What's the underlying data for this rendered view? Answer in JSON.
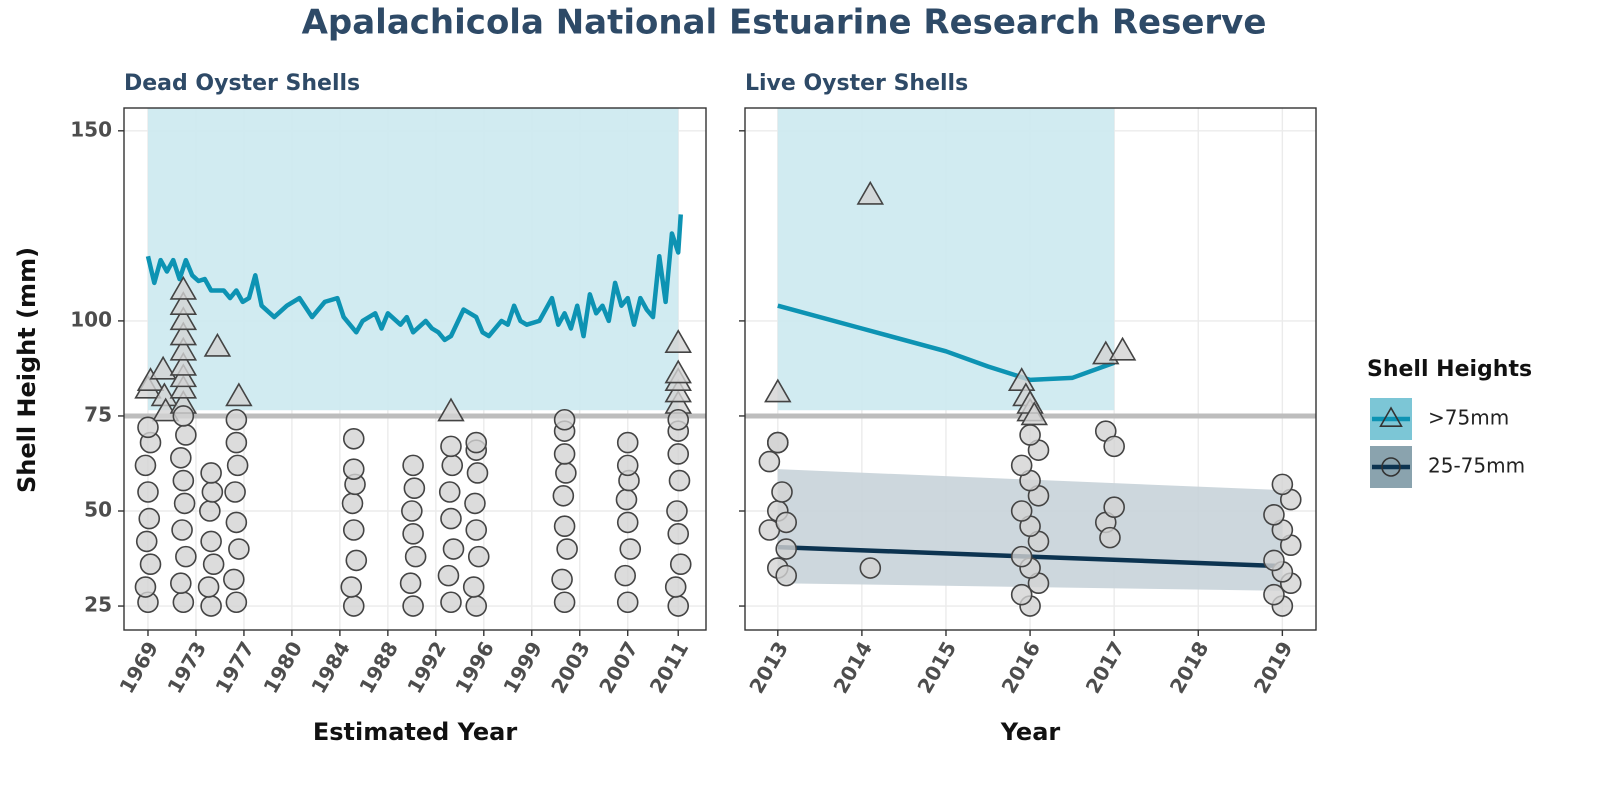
{
  "title": "Apalachicola National Estuarine Research Reserve",
  "ylabel": "Shell Height (mm)",
  "legend": {
    "title": "Shell Heights",
    "items": [
      {
        "label": ">75mm",
        "color": "#0d93b3",
        "fill": "#7cc6d6"
      },
      {
        "label": "25-75mm",
        "color": "#0c3350",
        "fill": "#8aa3ae"
      }
    ]
  },
  "chart_data": [
    {
      "type": "scatter",
      "title": "Dead Oyster Shells",
      "xlabel": "Estimated Year",
      "xlim": [
        1967.1,
        2013.2
      ],
      "ylim": [
        18.7,
        156
      ],
      "xticks": [
        1969,
        {
          "value": 1972.8,
          "label": "1973"
        },
        {
          "value": 1976.6,
          "label": "1977"
        },
        {
          "value": 1980.4,
          "label": "1980"
        },
        {
          "value": 1984.2,
          "label": "1984"
        },
        1988,
        {
          "value": 1991.8,
          "label": "1992"
        },
        {
          "value": 1995.6,
          "label": "1996"
        },
        {
          "value": 1999.4,
          "label": "1999"
        },
        {
          "value": 2003.2,
          "label": "2003"
        },
        2007,
        2011
      ],
      "yticks": [
        25,
        50,
        75,
        100,
        150
      ],
      "ytick_labels": true,
      "grid": true,
      "threshold": 75,
      "highlight": {
        "xrange": [
          1969,
          2011
        ],
        "ymin": 76.5,
        "color": "#cfeaf0"
      },
      "series": [
        {
          "marker": "triangle",
          "color": "#444444",
          "x": [
            1969,
            1969.2,
            1970.2,
            1970.3,
            1970.4,
            1971.8,
            1971.8,
            1971.8,
            1971.8,
            1971.8,
            1971.8,
            1971.8,
            1971.8,
            1971.8,
            1974.5,
            1976.2,
            1993,
            2011,
            2011,
            2011,
            2011,
            2011
          ],
          "values": [
            82,
            84,
            87,
            80,
            76,
            78,
            82,
            85,
            88,
            92,
            96,
            100,
            104,
            108,
            93,
            80,
            76,
            78,
            81,
            84,
            86,
            94
          ]
        },
        {
          "marker": "circle",
          "color": "#444444",
          "x": [
            1969,
            1968.8,
            1969.2,
            1968.9,
            1969.1,
            1969,
            1968.8,
            1969.2,
            1969,
            1971.8,
            1971.6,
            1972,
            1971.7,
            1971.9,
            1971.8,
            1971.6,
            1972,
            1971.8,
            1974,
            1973.8,
            1974.2,
            1974,
            1973.9,
            1974.1,
            1974,
            1976,
            1975.8,
            1976.2,
            1976,
            1975.9,
            1976.1,
            1976,
            1976,
            1985.3,
            1985.1,
            1985.5,
            1985.3,
            1985.2,
            1985.4,
            1985.3,
            1985.3,
            1990,
            1989.8,
            1990.2,
            1990,
            1989.9,
            1990.1,
            1990,
            1993,
            1992.8,
            1993.2,
            1993,
            1992.9,
            1993.1,
            1993,
            1995,
            1994.8,
            1995.2,
            1995,
            1994.9,
            1995.1,
            1995,
            1995,
            2002,
            2001.8,
            2002.2,
            2002,
            2001.9,
            2002.1,
            2002,
            2002,
            2002,
            2007,
            2006.8,
            2007.2,
            2007,
            2006.9,
            2007.1,
            2007,
            2007,
            2011,
            2010.8,
            2011.2,
            2011,
            2010.9,
            2011.1,
            2011,
            2011,
            2011
          ],
          "values": [
            26,
            30,
            36,
            42,
            48,
            55,
            62,
            68,
            72,
            26,
            31,
            38,
            45,
            52,
            58,
            64,
            70,
            75,
            25,
            30,
            36,
            42,
            50,
            55,
            60,
            26,
            32,
            40,
            47,
            55,
            62,
            68,
            74,
            25,
            30,
            37,
            45,
            52,
            57,
            61,
            69,
            25,
            31,
            38,
            44,
            50,
            56,
            62,
            26,
            33,
            40,
            48,
            55,
            62,
            67,
            25,
            30,
            38,
            45,
            52,
            60,
            66,
            68,
            26,
            32,
            40,
            46,
            54,
            60,
            65,
            71,
            74,
            26,
            33,
            40,
            47,
            53,
            58,
            62,
            68,
            25,
            30,
            36,
            44,
            50,
            58,
            65,
            71,
            74
          ]
        }
      ],
      "trend": {
        "color": "#0d93b3",
        "x": [
          1969,
          1969.5,
          1970,
          1970.5,
          1971,
          1971.5,
          1972,
          1972.5,
          1973,
          1973.5,
          1974,
          1975,
          1975.5,
          1976,
          1976.5,
          1977,
          1977.5,
          1978,
          1979,
          1980,
          1981,
          1982,
          1983,
          1984,
          1984.5,
          1985,
          1985.5,
          1986,
          1987,
          1987.5,
          1988,
          1989,
          1989.5,
          1990,
          1991,
          1991.5,
          1992,
          1992.5,
          1993,
          1994,
          1995,
          1995.5,
          1996,
          1997,
          1997.5,
          1998,
          1998.5,
          1999,
          2000,
          2001,
          2001.5,
          2002,
          2002.5,
          2003,
          2003.5,
          2004,
          2004.5,
          2005,
          2005.5,
          2006,
          2006.5,
          2007,
          2007.5,
          2008,
          2008.5,
          2009,
          2009.5,
          2010,
          2010.5,
          2011,
          2011.2
        ],
        "values": [
          117,
          110,
          116,
          113,
          116,
          111,
          116,
          112,
          110.5,
          111,
          108,
          108,
          106,
          108,
          105,
          106,
          112,
          104,
          101,
          104,
          106,
          101,
          105,
          106,
          101,
          99,
          97,
          100,
          102,
          98,
          102,
          99,
          101,
          97,
          100,
          98,
          97,
          95,
          96,
          103,
          101,
          97,
          96,
          100,
          99,
          104,
          100,
          99,
          100,
          106,
          99,
          102,
          98,
          104,
          96,
          107,
          102,
          104,
          100,
          110,
          104,
          106,
          99,
          106,
          103,
          101,
          117,
          105,
          123,
          118,
          128
        ]
      }
    },
    {
      "type": "scatter",
      "title": "Live Oyster Shells",
      "xlabel": "Year",
      "xlim": [
        2012.61,
        2019.4
      ],
      "ylim": [
        18.7,
        156
      ],
      "xticks": [
        2013,
        2014,
        2015,
        2016,
        2017,
        2018,
        2019
      ],
      "yticks": [
        25,
        50,
        75,
        100,
        150
      ],
      "ytick_labels": false,
      "grid": true,
      "threshold": 75,
      "highlight": {
        "xrange": [
          2013,
          2017
        ],
        "ymin": 76.5,
        "color": "#cfeaf0"
      },
      "ribbon": {
        "color": "#c8d3d9",
        "x": [
          2013,
          2019
        ],
        "upper": [
          61,
          55.5
        ],
        "lower": [
          31,
          29
        ]
      },
      "series": [
        {
          "marker": "triangle",
          "color": "#444444",
          "x": [
            2013,
            2014.1,
            2015.9,
            2015.95,
            2016,
            2016,
            2016.05,
            2016.9,
            2017.1
          ],
          "values": [
            81,
            133,
            84,
            80,
            76,
            78,
            75,
            91,
            92
          ]
        },
        {
          "marker": "circle",
          "color": "#444444",
          "x": [
            2012.9,
            2013,
            2013,
            2013.1,
            2012.9,
            2013,
            2013.05,
            2013,
            2013.1,
            2013.1,
            2014.1,
            2016,
            2015.9,
            2016.1,
            2016,
            2015.9,
            2016.1,
            2016,
            2015.9,
            2016.1,
            2016,
            2015.9,
            2016.1,
            2016,
            2016.9,
            2016.9,
            2016.95,
            2017,
            2017,
            2019,
            2018.9,
            2019.1,
            2019,
            2018.9,
            2019.1,
            2019,
            2018.9,
            2019.1,
            2019
          ],
          "values": [
            63,
            68,
            35,
            40,
            45,
            50,
            55,
            68,
            33,
            47,
            35,
            25,
            28,
            31,
            35,
            38,
            42,
            46,
            50,
            54,
            58,
            62,
            66,
            70,
            71,
            47,
            43,
            67,
            51,
            25,
            28,
            31,
            34,
            37,
            41,
            45,
            49,
            53,
            57
          ]
        }
      ],
      "trend": {
        "color": "#0d93b3",
        "x": [
          2013,
          2014,
          2015,
          2015.5,
          2016,
          2016.5,
          2017
        ],
        "values": [
          104,
          98,
          92,
          88,
          84.5,
          85,
          89
        ]
      },
      "trend2": {
        "color": "#0c3350",
        "x": [
          2013,
          2019
        ],
        "values": [
          40.5,
          35.5
        ]
      }
    }
  ]
}
